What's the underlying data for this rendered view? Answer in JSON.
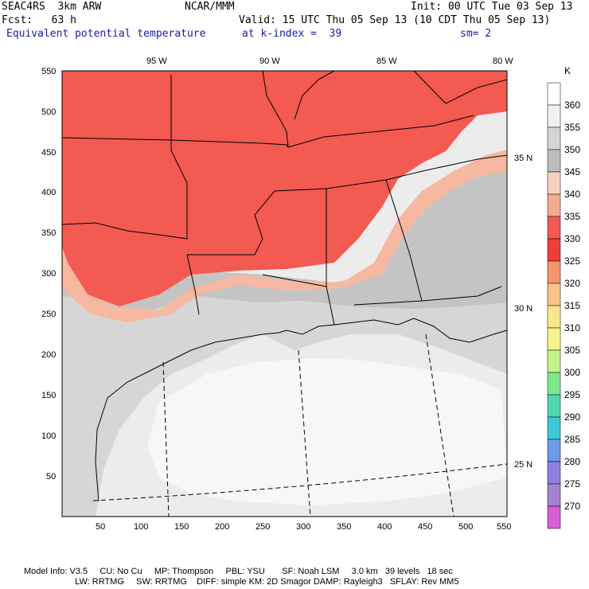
{
  "header": {
    "model": "SEAC4RS  3km ARW",
    "center": "NCAR/MMM",
    "init": "Init: 00 UTC Tue 03 Sep 13",
    "fcst": "Fcst:   63 h",
    "valid": "Valid: 15 UTC Thu 05 Sep 13 (10 CDT Thu 05 Sep 13)",
    "field": "Equivalent potential temperature",
    "level": "at k-index =  39",
    "smooth": "sm= 2"
  },
  "map": {
    "lon_labels": [
      "95 W",
      "90 W",
      "85 W",
      "80 W"
    ],
    "lat_labels": [
      "35 N",
      "30 N",
      "25 N"
    ],
    "x_ticks": [
      "50",
      "100",
      "150",
      "200",
      "250",
      "300",
      "350",
      "400",
      "450",
      "500",
      "550"
    ],
    "y_ticks": [
      "550",
      "500",
      "450",
      "400",
      "350",
      "300",
      "250",
      "200",
      "150",
      "100",
      "50"
    ],
    "colors": {
      "ocean": "#ececec",
      "warm": "#f25a52",
      "warm_light": "#f78a6e",
      "mid": "#f6b8a0",
      "gray": "#c9c9c9",
      "light_gray": "#dedede",
      "white": "#f7f7f7"
    }
  },
  "colorbar": {
    "unit": "K",
    "levels": [
      {
        "label": "360",
        "color": "#ffffff"
      },
      {
        "label": "355",
        "color": "#f0f0f0"
      },
      {
        "label": "350",
        "color": "#d4d4d4"
      },
      {
        "label": "345",
        "color": "#bdbdbd"
      },
      {
        "label": "340",
        "color": "#f7d3bf"
      },
      {
        "label": "335",
        "color": "#f7a98f"
      },
      {
        "label": "330",
        "color": "#f25a52"
      },
      {
        "label": "325",
        "color": "#f03c3c"
      },
      {
        "label": "320",
        "color": "#f5956a"
      },
      {
        "label": "315",
        "color": "#f9c588"
      },
      {
        "label": "310",
        "color": "#fbe88c"
      },
      {
        "label": "305",
        "color": "#f5f58a"
      },
      {
        "label": "300",
        "color": "#c6f28a"
      },
      {
        "label": "295",
        "color": "#7fe88f"
      },
      {
        "label": "290",
        "color": "#4fd8b0"
      },
      {
        "label": "285",
        "color": "#3cc7d8"
      },
      {
        "label": "280",
        "color": "#6c9be8"
      },
      {
        "label": "275",
        "color": "#8e7fe0"
      },
      {
        "label": "270",
        "color": "#a482d0"
      },
      {
        "label": "",
        "color": "#d65fd6"
      }
    ]
  },
  "footer": {
    "line1": "Model Info: V3.5     CU: No Cu     MP: Thompson     PBL: YSU       SF: Noah LSM     3.0 km   39 levels   18 sec",
    "line2": "                     LW: RRTMG     SW: RRTMG    DIFF: simple KM: 2D Smagor DAMP: Rayleigh3   SFLAY: Rev MM5"
  }
}
